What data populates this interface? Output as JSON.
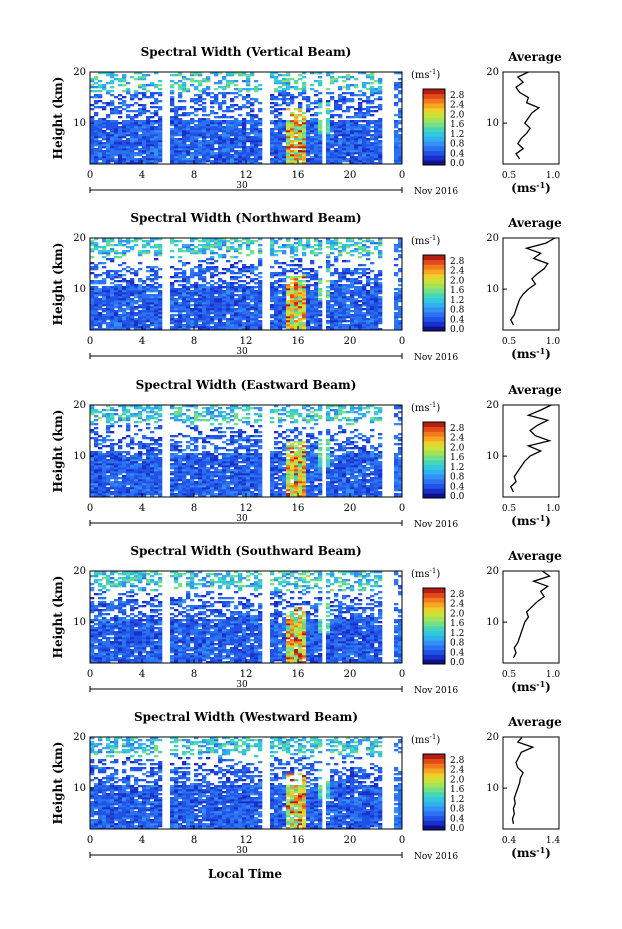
{
  "figure": {
    "xlabel_bottom": "Local Time",
    "date_day": "30",
    "date_month": "Nov 2016",
    "colorbar_unit": "(ms",
    "colorbar_unit_exp": "-1",
    "colorbar_unit_close": ")",
    "colorbar_ticks": [
      "2.8",
      "2.4",
      "2.0",
      "1.6",
      "1.2",
      "0.8",
      "0.4",
      "0.0"
    ],
    "avg_title": "Average",
    "avg_xlabel": "(ms",
    "avg_xlabel_exp": "-1",
    "avg_xlabel_close": ")",
    "ylabel": "Height (km)"
  },
  "chart_data": [
    {
      "type": "heatmap",
      "title": "Spectral Width (Vertical Beam)",
      "xlabel": "",
      "ylabel": "Height (km)",
      "x_ticks": [
        "0",
        "4",
        "8",
        "12",
        "16",
        "20",
        "0"
      ],
      "y_ticks": [
        "20",
        "10"
      ],
      "xlim": [
        0,
        24
      ],
      "ylim": [
        2,
        20
      ],
      "colorbar": {
        "min": 0.0,
        "max": 3.0,
        "label": "(ms^-1)"
      },
      "average_profile": {
        "xlim": [
          0.5,
          1.0
        ],
        "x_ticks": [
          "0.5",
          "1.0"
        ],
        "y_ticks": [
          "20",
          "10"
        ],
        "heights": [
          3,
          4,
          5,
          6,
          7,
          8,
          9,
          10,
          11,
          12,
          13,
          14,
          15,
          16,
          17,
          18,
          19,
          20
        ],
        "values": [
          0.62,
          0.58,
          0.66,
          0.6,
          0.64,
          0.7,
          0.74,
          0.68,
          0.72,
          0.76,
          0.84,
          0.7,
          0.72,
          0.62,
          0.58,
          0.66,
          0.6,
          0.72
        ]
      }
    },
    {
      "type": "heatmap",
      "title": "Spectral Width (Northward Beam)",
      "xlabel": "",
      "ylabel": "Height (km)",
      "x_ticks": [
        "0",
        "4",
        "8",
        "12",
        "16",
        "20",
        "0"
      ],
      "y_ticks": [
        "20",
        "10"
      ],
      "xlim": [
        0,
        24
      ],
      "ylim": [
        2,
        20
      ],
      "colorbar": {
        "min": 0.0,
        "max": 3.0,
        "label": "(ms^-1)"
      },
      "average_profile": {
        "xlim": [
          0.5,
          1.0
        ],
        "x_ticks": [
          "0.5",
          "1.0"
        ],
        "y_ticks": [
          "20",
          "10"
        ],
        "heights": [
          3,
          4,
          5,
          6,
          7,
          8,
          9,
          10,
          11,
          12,
          13,
          14,
          15,
          16,
          17,
          18,
          19,
          20
        ],
        "values": [
          0.55,
          0.52,
          0.56,
          0.58,
          0.6,
          0.62,
          0.66,
          0.72,
          0.8,
          0.76,
          0.82,
          0.9,
          0.94,
          0.78,
          0.86,
          0.7,
          0.92,
          1.02
        ]
      }
    },
    {
      "type": "heatmap",
      "title": "Spectral Width (Eastward Beam)",
      "xlabel": "",
      "ylabel": "Height (km)",
      "x_ticks": [
        "0",
        "4",
        "8",
        "12",
        "16",
        "20",
        "0"
      ],
      "y_ticks": [
        "20",
        "10"
      ],
      "xlim": [
        0,
        24
      ],
      "ylim": [
        2,
        20
      ],
      "colorbar": {
        "min": 0.0,
        "max": 3.0,
        "label": "(ms^-1)"
      },
      "average_profile": {
        "xlim": [
          0.5,
          1.0
        ],
        "x_ticks": [
          "0.5",
          "1.0"
        ],
        "y_ticks": [
          "20",
          "10"
        ],
        "heights": [
          3,
          4,
          5,
          6,
          7,
          8,
          9,
          10,
          11,
          12,
          13,
          14,
          15,
          16,
          17,
          18,
          19,
          20
        ],
        "values": [
          0.55,
          0.52,
          0.58,
          0.56,
          0.6,
          0.64,
          0.68,
          0.74,
          0.86,
          0.72,
          0.96,
          0.8,
          0.74,
          0.82,
          0.94,
          0.72,
          0.86,
          0.98
        ]
      }
    },
    {
      "type": "heatmap",
      "title": "Spectral Width (Southward Beam)",
      "xlabel": "",
      "ylabel": "Height (km)",
      "x_ticks": [
        "0",
        "4",
        "8",
        "12",
        "16",
        "20",
        "0"
      ],
      "y_ticks": [
        "20",
        "10"
      ],
      "xlim": [
        0,
        24
      ],
      "ylim": [
        2,
        20
      ],
      "colorbar": {
        "min": 0.0,
        "max": 3.0,
        "label": "(ms^-1)"
      },
      "average_profile": {
        "xlim": [
          0.5,
          1.0
        ],
        "x_ticks": [
          "0.5",
          "1.0"
        ],
        "y_ticks": [
          "20",
          "10"
        ],
        "heights": [
          3,
          4,
          5,
          6,
          7,
          8,
          9,
          10,
          11,
          12,
          13,
          14,
          15,
          16,
          17,
          18,
          19,
          20
        ],
        "values": [
          0.55,
          0.58,
          0.56,
          0.6,
          0.62,
          0.64,
          0.66,
          0.68,
          0.72,
          0.7,
          0.76,
          0.82,
          0.9,
          0.86,
          0.94,
          0.78,
          0.96,
          0.88
        ]
      }
    },
    {
      "type": "heatmap",
      "title": "Spectral Width (Westward Beam)",
      "xlabel": "Local Time",
      "ylabel": "Height (km)",
      "x_ticks": [
        "0",
        "4",
        "8",
        "12",
        "16",
        "20",
        "0"
      ],
      "y_ticks": [
        "20",
        "10"
      ],
      "xlim": [
        0,
        24
      ],
      "ylim": [
        2,
        20
      ],
      "colorbar": {
        "min": 0.0,
        "max": 3.0,
        "label": "(ms^-1)"
      },
      "average_profile": {
        "xlim": [
          0.4,
          1.4
        ],
        "x_ticks": [
          "0.4",
          "1.4"
        ],
        "y_ticks": [
          "20",
          "10"
        ],
        "heights": [
          3,
          4,
          5,
          6,
          7,
          8,
          9,
          10,
          11,
          12,
          13,
          14,
          15,
          16,
          17,
          18,
          19,
          20
        ],
        "values": [
          0.5,
          0.48,
          0.52,
          0.5,
          0.54,
          0.52,
          0.56,
          0.6,
          0.64,
          0.66,
          0.72,
          0.6,
          0.56,
          0.62,
          0.68,
          0.94,
          0.6,
          0.7
        ]
      }
    }
  ]
}
